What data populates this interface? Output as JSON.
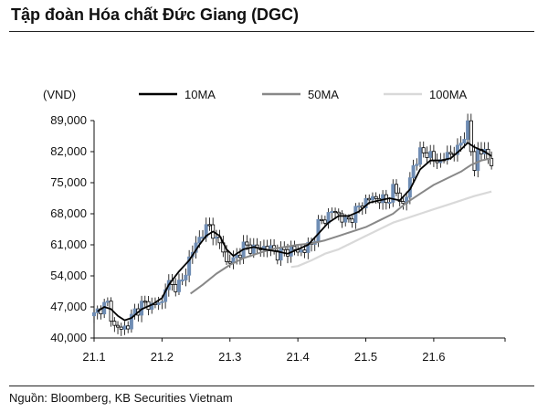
{
  "title": "Tập đoàn Hóa chất Đức Giang (DGC)",
  "source": "Nguồn: Bloomberg, KB Securities Vietnam",
  "chart_data": {
    "type": "line",
    "unit_label": "(VND)",
    "ylim": [
      40000,
      89000
    ],
    "yticks": [
      40000,
      47000,
      54000,
      61000,
      68000,
      75000,
      82000,
      89000
    ],
    "ytick_labels": [
      "40,000",
      "47,000",
      "54,000",
      "61,000",
      "68,000",
      "75,000",
      "82,000",
      "89,000"
    ],
    "xlim": [
      0,
      6.05
    ],
    "xtick_labels": [
      "21.1",
      "21.2",
      "21.3",
      "21.4",
      "21.5",
      "21.6"
    ],
    "xtick_values": [
      0,
      1,
      2,
      3,
      4,
      5
    ],
    "legend_placement": "top",
    "grid": false,
    "series": [
      {
        "name": "10MA",
        "color": "#000000",
        "points": [
          [
            0.05,
            46000
          ],
          [
            0.15,
            47000
          ],
          [
            0.25,
            46500
          ],
          [
            0.35,
            45000
          ],
          [
            0.45,
            44000
          ],
          [
            0.55,
            44500
          ],
          [
            0.7,
            46500
          ],
          [
            0.85,
            47500
          ],
          [
            1.0,
            49000
          ],
          [
            1.1,
            52000
          ],
          [
            1.25,
            55000
          ],
          [
            1.4,
            57500
          ],
          [
            1.55,
            61000
          ],
          [
            1.65,
            63000
          ],
          [
            1.75,
            64000
          ],
          [
            1.85,
            63000
          ],
          [
            1.95,
            60000
          ],
          [
            2.05,
            58500
          ],
          [
            2.2,
            60000
          ],
          [
            2.35,
            60500
          ],
          [
            2.5,
            60000
          ],
          [
            2.7,
            59500
          ],
          [
            2.85,
            59000
          ],
          [
            3.0,
            60000
          ],
          [
            3.15,
            61000
          ],
          [
            3.3,
            63500
          ],
          [
            3.45,
            66000
          ],
          [
            3.6,
            67500
          ],
          [
            3.75,
            67500
          ],
          [
            3.9,
            68500
          ],
          [
            4.05,
            70500
          ],
          [
            4.2,
            71000
          ],
          [
            4.35,
            71500
          ],
          [
            4.5,
            71000
          ],
          [
            4.65,
            73500
          ],
          [
            4.8,
            78000
          ],
          [
            4.95,
            80000
          ],
          [
            5.1,
            80000
          ],
          [
            5.25,
            80500
          ],
          [
            5.4,
            82500
          ],
          [
            5.5,
            84000
          ],
          [
            5.6,
            83000
          ],
          [
            5.75,
            82000
          ],
          [
            5.85,
            81000
          ]
        ]
      },
      {
        "name": "50MA",
        "color": "#888888",
        "points": [
          [
            1.42,
            50000
          ],
          [
            1.6,
            52000
          ],
          [
            1.8,
            54500
          ],
          [
            2.0,
            56500
          ],
          [
            2.2,
            58000
          ],
          [
            2.4,
            59000
          ],
          [
            2.6,
            60000
          ],
          [
            2.8,
            60500
          ],
          [
            3.0,
            61000
          ],
          [
            3.2,
            61300
          ],
          [
            3.4,
            62000
          ],
          [
            3.6,
            63000
          ],
          [
            3.8,
            64000
          ],
          [
            4.0,
            65000
          ],
          [
            4.2,
            66500
          ],
          [
            4.4,
            68000
          ],
          [
            4.6,
            70500
          ],
          [
            4.8,
            72500
          ],
          [
            5.0,
            74500
          ],
          [
            5.2,
            76000
          ],
          [
            5.4,
            77500
          ],
          [
            5.55,
            79000
          ],
          [
            5.7,
            80000
          ],
          [
            5.85,
            80500
          ]
        ]
      },
      {
        "name": "100MA",
        "color": "#d9d9d9",
        "points": [
          [
            2.9,
            56000
          ],
          [
            3.0,
            56200
          ],
          [
            3.2,
            57500
          ],
          [
            3.4,
            59000
          ],
          [
            3.6,
            60000
          ],
          [
            3.8,
            61500
          ],
          [
            4.0,
            63000
          ],
          [
            4.2,
            64500
          ],
          [
            4.4,
            66000
          ],
          [
            4.6,
            67000
          ],
          [
            4.8,
            68000
          ],
          [
            5.0,
            69000
          ],
          [
            5.2,
            70000
          ],
          [
            5.4,
            71000
          ],
          [
            5.6,
            72000
          ],
          [
            5.85,
            73000
          ]
        ]
      }
    ],
    "price_bars": {
      "up_color": "#6f8db4",
      "down_color": "#000000",
      "x_range": [
        0.0,
        5.85
      ],
      "close_points": [
        [
          0,
          45000
        ],
        [
          0.1,
          47000
        ],
        [
          0.2,
          47500
        ],
        [
          0.3,
          42500
        ],
        [
          0.4,
          42000
        ],
        [
          0.5,
          43000
        ],
        [
          0.6,
          46000
        ],
        [
          0.7,
          47500
        ],
        [
          0.8,
          47500
        ],
        [
          0.9,
          47500
        ],
        [
          1.0,
          48000
        ],
        [
          1.05,
          52000
        ],
        [
          1.1,
          52000
        ],
        [
          1.15,
          51500
        ],
        [
          1.2,
          52000
        ],
        [
          1.3,
          52500
        ],
        [
          1.35,
          55000
        ],
        [
          1.4,
          58000
        ],
        [
          1.5,
          61000
        ],
        [
          1.55,
          62500
        ],
        [
          1.6,
          64000
        ],
        [
          1.7,
          65000
        ],
        [
          1.75,
          64000
        ],
        [
          1.8,
          62000
        ],
        [
          1.9,
          60000
        ],
        [
          1.95,
          57000
        ],
        [
          2.05,
          57500
        ],
        [
          2.1,
          58500
        ],
        [
          2.2,
          60500
        ],
        [
          2.3,
          60500
        ],
        [
          2.4,
          60000
        ],
        [
          2.5,
          60500
        ],
        [
          2.6,
          60000
        ],
        [
          2.7,
          59000
        ],
        [
          2.8,
          59500
        ],
        [
          2.9,
          60000
        ],
        [
          3.0,
          59500
        ],
        [
          3.1,
          60000
        ],
        [
          3.2,
          61000
        ],
        [
          3.3,
          65500
        ],
        [
          3.4,
          67000
        ],
        [
          3.5,
          68500
        ],
        [
          3.6,
          68000
        ],
        [
          3.7,
          66000
        ],
        [
          3.8,
          67500
        ],
        [
          3.9,
          69500
        ],
        [
          4.0,
          71000
        ],
        [
          4.1,
          71500
        ],
        [
          4.2,
          71500
        ],
        [
          4.3,
          70500
        ],
        [
          4.4,
          73500
        ],
        [
          4.5,
          71500
        ],
        [
          4.55,
          70000
        ],
        [
          4.6,
          72000
        ],
        [
          4.7,
          79000
        ],
        [
          4.8,
          81500
        ],
        [
          4.9,
          82000
        ],
        [
          5.0,
          80000
        ],
        [
          5.1,
          80000
        ],
        [
          5.2,
          81000
        ],
        [
          5.3,
          82500
        ],
        [
          5.35,
          82000
        ],
        [
          5.4,
          84000
        ],
        [
          5.5,
          88000
        ],
        [
          5.55,
          82000
        ],
        [
          5.6,
          78000
        ],
        [
          5.65,
          82500
        ],
        [
          5.75,
          81500
        ],
        [
          5.85,
          80000
        ]
      ]
    }
  }
}
